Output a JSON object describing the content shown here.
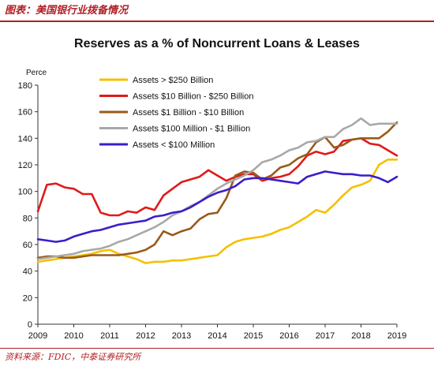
{
  "header": {
    "title": "图表：美国银行业拨备情况"
  },
  "source": "资料来源：FDIC，中泰证券研究所",
  "colors": {
    "accent": "#b11f24"
  },
  "chart_data": {
    "type": "line",
    "title": "Reserves as a % of Noncurrent Loans & Leases",
    "ylabel": "Perce",
    "xlabel": "",
    "xlim": [
      2009,
      2019
    ],
    "ylim": [
      0,
      180
    ],
    "yticks": [
      0,
      20,
      40,
      60,
      80,
      100,
      120,
      140,
      160,
      180
    ],
    "xticks": [
      2009,
      2010,
      2011,
      2012,
      2013,
      2014,
      2015,
      2016,
      2017,
      2018,
      2019
    ],
    "grid": false,
    "legend_position": "top-left",
    "x": [
      2009.0,
      2009.25,
      2009.5,
      2009.75,
      2010.0,
      2010.25,
      2010.5,
      2010.75,
      2011.0,
      2011.25,
      2011.5,
      2011.75,
      2012.0,
      2012.25,
      2012.5,
      2012.75,
      2013.0,
      2013.25,
      2013.5,
      2013.75,
      2014.0,
      2014.25,
      2014.5,
      2014.75,
      2015.0,
      2015.25,
      2015.5,
      2015.75,
      2016.0,
      2016.25,
      2016.5,
      2016.75,
      2017.0,
      2017.25,
      2017.5,
      2017.75,
      2018.0,
      2018.25,
      2018.5,
      2018.75,
      2019.0
    ],
    "series": [
      {
        "name": "Assets > $250 Billion",
        "color": "#f5c000",
        "values": [
          47,
          48,
          49,
          50,
          51,
          52,
          53,
          55,
          56,
          53,
          51,
          49,
          46,
          47,
          47,
          48,
          48,
          49,
          50,
          51,
          52,
          58,
          62,
          64,
          65,
          66,
          68,
          71,
          73,
          77,
          81,
          86,
          84,
          90,
          97,
          103,
          105,
          108,
          120,
          124,
          124
        ]
      },
      {
        "name": "Assets  $10 Billion - $250 Billion",
        "color": "#e01a1a",
        "values": [
          85,
          105,
          106,
          103,
          102,
          98,
          98,
          84,
          82,
          82,
          85,
          84,
          88,
          86,
          97,
          102,
          107,
          109,
          111,
          116,
          112,
          108,
          111,
          113,
          113,
          108,
          110,
          111,
          113,
          119,
          127,
          130,
          128,
          130,
          138,
          139,
          140,
          136,
          135,
          131,
          127
        ]
      },
      {
        "name": "Assets $1 Billion - $10 Billion",
        "color": "#9a5a19",
        "values": [
          50,
          51,
          51,
          50,
          50,
          51,
          52,
          52,
          52,
          52,
          53,
          54,
          56,
          60,
          70,
          67,
          70,
          72,
          79,
          83,
          84,
          95,
          112,
          115,
          114,
          109,
          112,
          118,
          120,
          125,
          128,
          137,
          141,
          133,
          135,
          139,
          140,
          140,
          140,
          145,
          152
        ]
      },
      {
        "name": "Assets $100 Million - $1 Billion",
        "color": "#a8a8a8",
        "values": [
          49,
          50,
          51,
          52,
          53,
          55,
          56,
          57,
          59,
          62,
          64,
          67,
          70,
          73,
          77,
          82,
          85,
          89,
          92,
          97,
          102,
          106,
          109,
          112,
          116,
          122,
          124,
          127,
          131,
          133,
          137,
          138,
          141,
          141,
          147,
          150,
          155,
          150,
          151,
          151,
          151
        ]
      },
      {
        "name": "Assets < $100 Million",
        "color": "#3a1ec8",
        "values": [
          64,
          63,
          62,
          63,
          66,
          68,
          70,
          71,
          73,
          75,
          76,
          77,
          78,
          81,
          82,
          84,
          85,
          88,
          92,
          96,
          99,
          101,
          104,
          109,
          110,
          110,
          109,
          108,
          107,
          106,
          111,
          113,
          115,
          114,
          113,
          113,
          112,
          112,
          110,
          107,
          111
        ]
      }
    ]
  }
}
